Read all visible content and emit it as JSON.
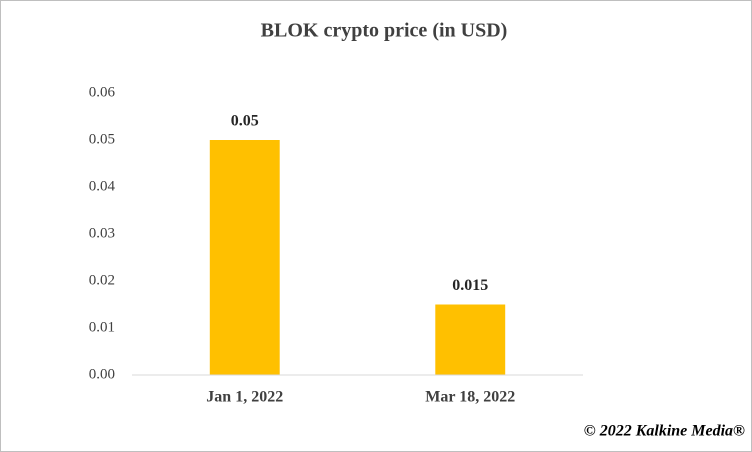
{
  "chart_data": {
    "type": "bar",
    "title": "BLOK crypto price (in USD)",
    "categories": [
      "Jan 1, 2022",
      "Mar 18, 2022"
    ],
    "values": [
      0.05,
      0.015
    ],
    "color": "#ffc000",
    "ylim": [
      0,
      0.06
    ],
    "yticks": [
      {
        "value": 0,
        "label": "0.00"
      },
      0.01,
      0.02,
      0.03,
      0.04,
      0.05,
      0.06
    ],
    "grid": false,
    "watermark": "© 2022 Kalkine Media®"
  }
}
